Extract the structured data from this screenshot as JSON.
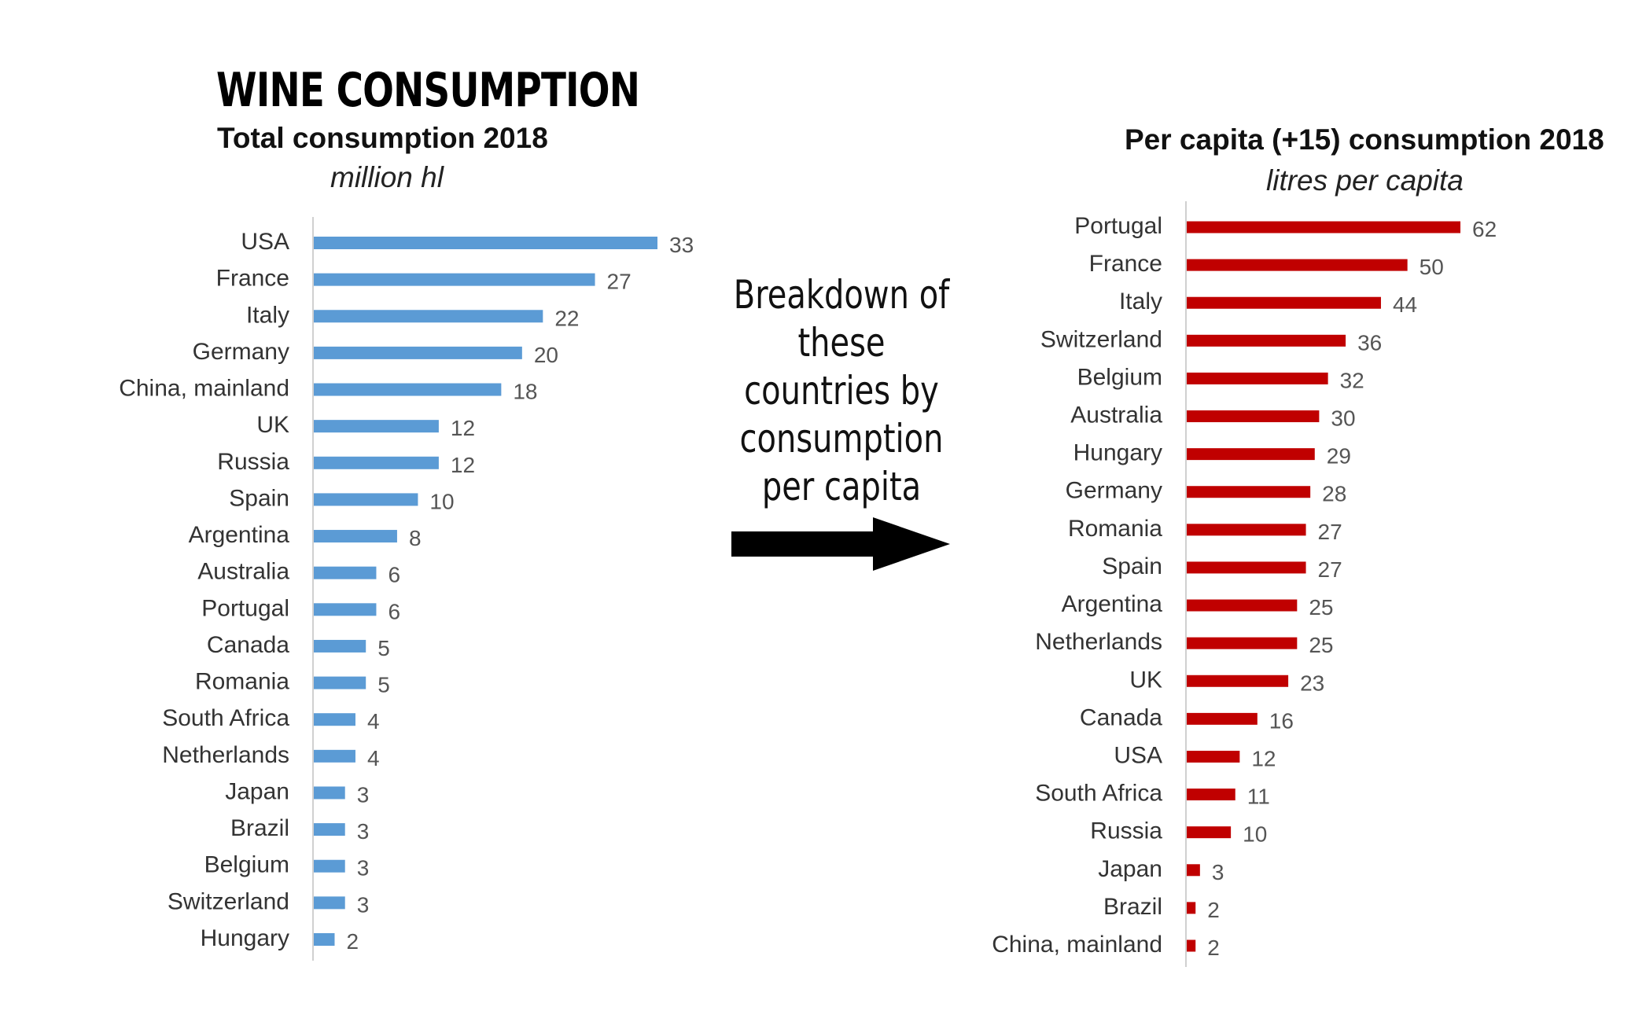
{
  "header": {
    "main_title": "WINE CONSUMPTION"
  },
  "annotation": {
    "text": "Breakdown of these countries by consumption per capita"
  },
  "chart_data": [
    {
      "type": "bar",
      "orientation": "horizontal",
      "title": "Total consumption 2018",
      "subtitle": "million hl",
      "color": "#5b9bd5",
      "categories": [
        "USA",
        "France",
        "Italy",
        "Germany",
        "China, mainland",
        "UK",
        "Russia",
        "Spain",
        "Argentina",
        "Australia",
        "Portugal",
        "Canada",
        "Romania",
        "South Africa",
        "Netherlands",
        "Japan",
        "Brazil",
        "Belgium",
        "Switzerland",
        "Hungary"
      ],
      "values": [
        33,
        27,
        22,
        20,
        18,
        12,
        12,
        10,
        8,
        6,
        6,
        5,
        5,
        4,
        4,
        3,
        3,
        3,
        3,
        2
      ],
      "xlim": [
        0,
        33
      ],
      "grid": false,
      "data_labels": true
    },
    {
      "type": "bar",
      "orientation": "horizontal",
      "title": "Per capita (+15) consumption 2018",
      "subtitle": "litres per capita",
      "color": "#c00000",
      "categories": [
        "Portugal",
        "France",
        "Italy",
        "Switzerland",
        "Belgium",
        "Australia",
        "Hungary",
        "Germany",
        "Romania",
        "Spain",
        "Argentina",
        "Netherlands",
        "UK",
        "Canada",
        "USA",
        "South Africa",
        "Russia",
        "Japan",
        "Brazil",
        "China, mainland"
      ],
      "values": [
        62,
        50,
        44,
        36,
        32,
        30,
        29,
        28,
        27,
        27,
        25,
        25,
        23,
        16,
        12,
        11,
        10,
        3,
        2,
        2
      ],
      "xlim": [
        0,
        62
      ],
      "grid": false,
      "data_labels": true
    }
  ]
}
